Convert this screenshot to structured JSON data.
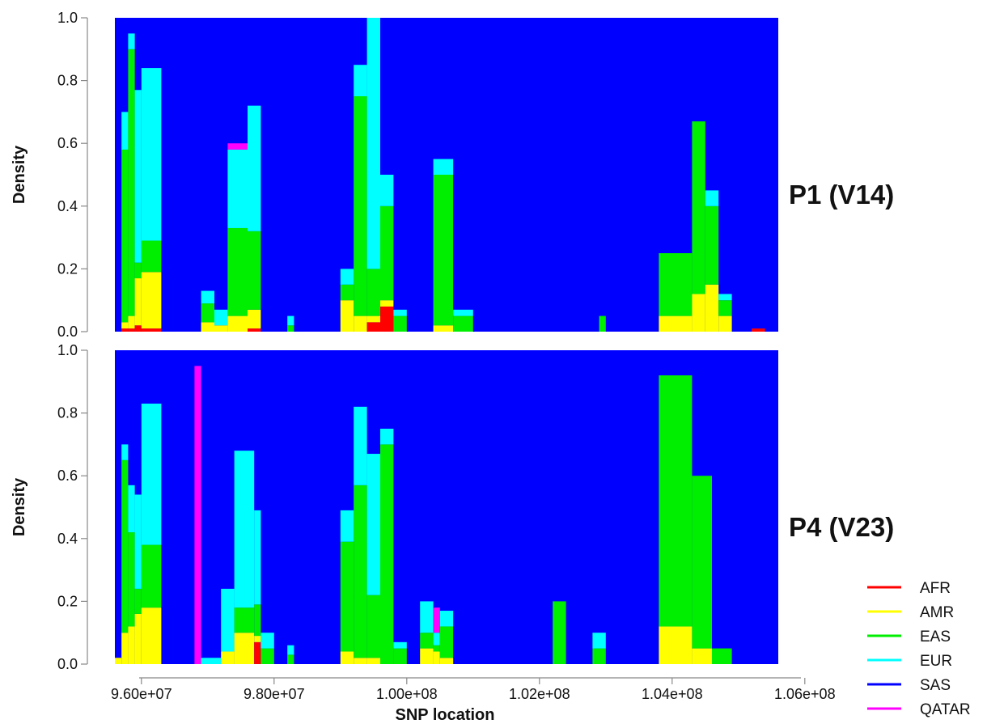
{
  "chart_data": {
    "type": "area",
    "subtype": "stacked local-ancestry density along chromosome",
    "xlabel": "SNP location",
    "ylabel": "Density",
    "xlim": [
      95600000,
      105600000
    ],
    "ylim": [
      0,
      1
    ],
    "x_ticks": [
      96000000,
      98000000,
      100000000,
      102000000,
      104000000,
      106000000
    ],
    "x_tick_labels": [
      "9.60e+07",
      "9.80e+07",
      "1.00e+08",
      "1.02e+08",
      "1.04e+08",
      "1.06e+08"
    ],
    "y_ticks": [
      0,
      0.2,
      0.4,
      0.6,
      0.8,
      1
    ],
    "y_tick_labels": [
      "0.0",
      "0.2",
      "0.4",
      "0.6",
      "0.8",
      "1.0"
    ],
    "legend_position": "bottom-right",
    "legend": [
      {
        "name": "AFR",
        "color": "#ff0000"
      },
      {
        "name": "AMR",
        "color": "#ffff00"
      },
      {
        "name": "EAS",
        "color": "#00ee00"
      },
      {
        "name": "EUR",
        "color": "#00ffff"
      },
      {
        "name": "SAS",
        "color": "#0000ff"
      },
      {
        "name": "QATAR",
        "color": "#ff00ff"
      }
    ],
    "stack_order_bottom_to_top": [
      "AFR",
      "AMR",
      "EAS",
      "EUR",
      "SAS",
      "QATAR"
    ],
    "panels": [
      {
        "label": "P1 (V14)",
        "segments": [
          {
            "x0": 95600000,
            "x1": 95700000,
            "AFR": 0.0,
            "AMR": 0.0,
            "EAS": 0.0,
            "EUR": 0.0,
            "QATAR": 0.0
          },
          {
            "x0": 95700000,
            "x1": 95800000,
            "AFR": 0.01,
            "AMR": 0.02,
            "EAS": 0.55,
            "EUR": 0.12,
            "QATAR": 0.0
          },
          {
            "x0": 95800000,
            "x1": 95900000,
            "AFR": 0.01,
            "AMR": 0.04,
            "EAS": 0.85,
            "EUR": 0.05,
            "QATAR": 0.0
          },
          {
            "x0": 95900000,
            "x1": 96000000,
            "AFR": 0.02,
            "AMR": 0.15,
            "EAS": 0.05,
            "EUR": 0.55,
            "QATAR": 0.0
          },
          {
            "x0": 96000000,
            "x1": 96300000,
            "AFR": 0.01,
            "AMR": 0.18,
            "EAS": 0.1,
            "EUR": 0.55,
            "QATAR": 0.0
          },
          {
            "x0": 96300000,
            "x1": 96900000,
            "AFR": 0.0,
            "AMR": 0.0,
            "EAS": 0.0,
            "EUR": 0.0,
            "QATAR": 0.0
          },
          {
            "x0": 96900000,
            "x1": 97100000,
            "AFR": 0.0,
            "AMR": 0.03,
            "EAS": 0.06,
            "EUR": 0.04,
            "QATAR": 0.0
          },
          {
            "x0": 97100000,
            "x1": 97300000,
            "AFR": 0.0,
            "AMR": 0.02,
            "EAS": 0.0,
            "EUR": 0.05,
            "QATAR": 0.0
          },
          {
            "x0": 97300000,
            "x1": 97600000,
            "AFR": 0.0,
            "AMR": 0.05,
            "EAS": 0.28,
            "EUR": 0.25,
            "QATAR": 0.02
          },
          {
            "x0": 97600000,
            "x1": 97800000,
            "AFR": 0.01,
            "AMR": 0.06,
            "EAS": 0.25,
            "EUR": 0.4,
            "QATAR": 0.0
          },
          {
            "x0": 97800000,
            "x1": 98200000,
            "AFR": 0.0,
            "AMR": 0.0,
            "EAS": 0.0,
            "EUR": 0.0,
            "QATAR": 0.0
          },
          {
            "x0": 98200000,
            "x1": 98300000,
            "AFR": 0.0,
            "AMR": 0.0,
            "EAS": 0.02,
            "EUR": 0.03,
            "QATAR": 0.0
          },
          {
            "x0": 98300000,
            "x1": 99000000,
            "AFR": 0.0,
            "AMR": 0.0,
            "EAS": 0.0,
            "EUR": 0.0,
            "QATAR": 0.0
          },
          {
            "x0": 99000000,
            "x1": 99200000,
            "AFR": 0.0,
            "AMR": 0.1,
            "EAS": 0.05,
            "EUR": 0.05,
            "QATAR": 0.0
          },
          {
            "x0": 99200000,
            "x1": 99400000,
            "AFR": 0.0,
            "AMR": 0.05,
            "EAS": 0.7,
            "EUR": 0.1,
            "QATAR": 0.0
          },
          {
            "x0": 99400000,
            "x1": 99600000,
            "AFR": 0.03,
            "AMR": 0.02,
            "EAS": 0.15,
            "EUR": 0.8,
            "QATAR": 0.0
          },
          {
            "x0": 99600000,
            "x1": 99800000,
            "AFR": 0.08,
            "AMR": 0.02,
            "EAS": 0.3,
            "EUR": 0.1,
            "QATAR": 0.0
          },
          {
            "x0": 99800000,
            "x1": 100000000,
            "AFR": 0.0,
            "AMR": 0.0,
            "EAS": 0.05,
            "EUR": 0.02,
            "QATAR": 0.0
          },
          {
            "x0": 100000000,
            "x1": 100400000,
            "AFR": 0.0,
            "AMR": 0.0,
            "EAS": 0.0,
            "EUR": 0.0,
            "QATAR": 0.0
          },
          {
            "x0": 100400000,
            "x1": 100700000,
            "AFR": 0.0,
            "AMR": 0.02,
            "EAS": 0.48,
            "EUR": 0.05,
            "QATAR": 0.0
          },
          {
            "x0": 100700000,
            "x1": 101000000,
            "AFR": 0.0,
            "AMR": 0.0,
            "EAS": 0.05,
            "EUR": 0.02,
            "QATAR": 0.0
          },
          {
            "x0": 101000000,
            "x1": 102900000,
            "AFR": 0.0,
            "AMR": 0.0,
            "EAS": 0.0,
            "EUR": 0.0,
            "QATAR": 0.0
          },
          {
            "x0": 102900000,
            "x1": 103000000,
            "AFR": 0.0,
            "AMR": 0.0,
            "EAS": 0.05,
            "EUR": 0.0,
            "QATAR": 0.0
          },
          {
            "x0": 103000000,
            "x1": 103800000,
            "AFR": 0.0,
            "AMR": 0.0,
            "EAS": 0.0,
            "EUR": 0.0,
            "QATAR": 0.0
          },
          {
            "x0": 103800000,
            "x1": 104300000,
            "AFR": 0.0,
            "AMR": 0.05,
            "EAS": 0.2,
            "EUR": 0.0,
            "QATAR": 0.0
          },
          {
            "x0": 104300000,
            "x1": 104500000,
            "AFR": 0.0,
            "AMR": 0.12,
            "EAS": 0.55,
            "EUR": 0.0,
            "QATAR": 0.0
          },
          {
            "x0": 104500000,
            "x1": 104700000,
            "AFR": 0.0,
            "AMR": 0.15,
            "EAS": 0.25,
            "EUR": 0.05,
            "QATAR": 0.0
          },
          {
            "x0": 104700000,
            "x1": 104900000,
            "AFR": 0.0,
            "AMR": 0.05,
            "EAS": 0.05,
            "EUR": 0.02,
            "QATAR": 0.0
          },
          {
            "x0": 104900000,
            "x1": 105200000,
            "AFR": 0.0,
            "AMR": 0.0,
            "EAS": 0.0,
            "EUR": 0.0,
            "QATAR": 0.0
          },
          {
            "x0": 105200000,
            "x1": 105400000,
            "AFR": 0.01,
            "AMR": 0.0,
            "EAS": 0.0,
            "EUR": 0.0,
            "QATAR": 0.0
          },
          {
            "x0": 105400000,
            "x1": 105600000,
            "AFR": 0.0,
            "AMR": 0.0,
            "EAS": 0.0,
            "EUR": 0.0,
            "QATAR": 0.0
          }
        ]
      },
      {
        "label": "P4 (V23)",
        "segments": [
          {
            "x0": 95600000,
            "x1": 95700000,
            "AFR": 0.0,
            "AMR": 0.02,
            "EAS": 0.0,
            "EUR": 0.0,
            "QATAR": 0.0
          },
          {
            "x0": 95700000,
            "x1": 95800000,
            "AFR": 0.0,
            "AMR": 0.1,
            "EAS": 0.55,
            "EUR": 0.05,
            "QATAR": 0.0
          },
          {
            "x0": 95800000,
            "x1": 95900000,
            "AFR": 0.0,
            "AMR": 0.12,
            "EAS": 0.3,
            "EUR": 0.15,
            "QATAR": 0.0
          },
          {
            "x0": 95900000,
            "x1": 96000000,
            "AFR": 0.0,
            "AMR": 0.16,
            "EAS": 0.08,
            "EUR": 0.3,
            "QATAR": 0.0
          },
          {
            "x0": 96000000,
            "x1": 96300000,
            "AFR": 0.0,
            "AMR": 0.18,
            "EAS": 0.2,
            "EUR": 0.45,
            "QATAR": 0.0
          },
          {
            "x0": 96300000,
            "x1": 96800000,
            "AFR": 0.0,
            "AMR": 0.0,
            "EAS": 0.0,
            "EUR": 0.0,
            "QATAR": 0.0
          },
          {
            "x0": 96800000,
            "x1": 96900000,
            "AFR": 0.0,
            "AMR": 0.0,
            "EAS": 0.0,
            "EUR": 0.0,
            "QATAR": 0.95
          },
          {
            "x0": 96900000,
            "x1": 97200000,
            "AFR": 0.0,
            "AMR": 0.0,
            "EAS": 0.0,
            "EUR": 0.02,
            "QATAR": 0.0
          },
          {
            "x0": 97200000,
            "x1": 97400000,
            "AFR": 0.0,
            "AMR": 0.04,
            "EAS": 0.0,
            "EUR": 0.2,
            "QATAR": 0.0
          },
          {
            "x0": 97400000,
            "x1": 97700000,
            "AFR": 0.0,
            "AMR": 0.1,
            "EAS": 0.08,
            "EUR": 0.5,
            "QATAR": 0.0
          },
          {
            "x0": 97700000,
            "x1": 97800000,
            "AFR": 0.07,
            "AMR": 0.02,
            "EAS": 0.1,
            "EUR": 0.3,
            "QATAR": 0.0
          },
          {
            "x0": 97800000,
            "x1": 98000000,
            "AFR": 0.0,
            "AMR": 0.0,
            "EAS": 0.05,
            "EUR": 0.05,
            "QATAR": 0.0
          },
          {
            "x0": 98000000,
            "x1": 98200000,
            "AFR": 0.0,
            "AMR": 0.0,
            "EAS": 0.0,
            "EUR": 0.0,
            "QATAR": 0.0
          },
          {
            "x0": 98200000,
            "x1": 98300000,
            "AFR": 0.0,
            "AMR": 0.0,
            "EAS": 0.03,
            "EUR": 0.03,
            "QATAR": 0.0
          },
          {
            "x0": 98300000,
            "x1": 99000000,
            "AFR": 0.0,
            "AMR": 0.0,
            "EAS": 0.0,
            "EUR": 0.0,
            "QATAR": 0.0
          },
          {
            "x0": 99000000,
            "x1": 99200000,
            "AFR": 0.0,
            "AMR": 0.04,
            "EAS": 0.35,
            "EUR": 0.1,
            "QATAR": 0.0
          },
          {
            "x0": 99200000,
            "x1": 99400000,
            "AFR": 0.0,
            "AMR": 0.02,
            "EAS": 0.55,
            "EUR": 0.25,
            "QATAR": 0.0
          },
          {
            "x0": 99400000,
            "x1": 99600000,
            "AFR": 0.0,
            "AMR": 0.02,
            "EAS": 0.2,
            "EUR": 0.45,
            "QATAR": 0.0
          },
          {
            "x0": 99600000,
            "x1": 99800000,
            "AFR": 0.0,
            "AMR": 0.0,
            "EAS": 0.7,
            "EUR": 0.05,
            "QATAR": 0.0
          },
          {
            "x0": 99800000,
            "x1": 100000000,
            "AFR": 0.0,
            "AMR": 0.0,
            "EAS": 0.05,
            "EUR": 0.02,
            "QATAR": 0.0
          },
          {
            "x0": 100000000,
            "x1": 100200000,
            "AFR": 0.0,
            "AMR": 0.0,
            "EAS": 0.0,
            "EUR": 0.0,
            "QATAR": 0.0
          },
          {
            "x0": 100200000,
            "x1": 100400000,
            "AFR": 0.0,
            "AMR": 0.05,
            "EAS": 0.05,
            "EUR": 0.1,
            "QATAR": 0.0
          },
          {
            "x0": 100400000,
            "x1": 100500000,
            "AFR": 0.0,
            "AMR": 0.04,
            "EAS": 0.02,
            "EUR": 0.04,
            "QATAR": 0.08
          },
          {
            "x0": 100500000,
            "x1": 100700000,
            "AFR": 0.0,
            "AMR": 0.02,
            "EAS": 0.1,
            "EUR": 0.05,
            "QATAR": 0.0
          },
          {
            "x0": 100700000,
            "x1": 102200000,
            "AFR": 0.0,
            "AMR": 0.0,
            "EAS": 0.0,
            "EUR": 0.0,
            "QATAR": 0.0
          },
          {
            "x0": 102200000,
            "x1": 102400000,
            "AFR": 0.0,
            "AMR": 0.0,
            "EAS": 0.2,
            "EUR": 0.0,
            "QATAR": 0.0
          },
          {
            "x0": 102400000,
            "x1": 102800000,
            "AFR": 0.0,
            "AMR": 0.0,
            "EAS": 0.0,
            "EUR": 0.0,
            "QATAR": 0.0
          },
          {
            "x0": 102800000,
            "x1": 103000000,
            "AFR": 0.0,
            "AMR": 0.0,
            "EAS": 0.05,
            "EUR": 0.05,
            "QATAR": 0.0
          },
          {
            "x0": 103000000,
            "x1": 103800000,
            "AFR": 0.0,
            "AMR": 0.0,
            "EAS": 0.0,
            "EUR": 0.0,
            "QATAR": 0.0
          },
          {
            "x0": 103800000,
            "x1": 104300000,
            "AFR": 0.0,
            "AMR": 0.12,
            "EAS": 0.8,
            "EUR": 0.0,
            "QATAR": 0.0
          },
          {
            "x0": 104300000,
            "x1": 104600000,
            "AFR": 0.0,
            "AMR": 0.05,
            "EAS": 0.55,
            "EUR": 0.0,
            "QATAR": 0.0
          },
          {
            "x0": 104600000,
            "x1": 104900000,
            "AFR": 0.0,
            "AMR": 0.0,
            "EAS": 0.05,
            "EUR": 0.0,
            "QATAR": 0.0
          },
          {
            "x0": 104900000,
            "x1": 105600000,
            "AFR": 0.0,
            "AMR": 0.0,
            "EAS": 0.0,
            "EUR": 0.0,
            "QATAR": 0.0
          }
        ]
      }
    ]
  }
}
